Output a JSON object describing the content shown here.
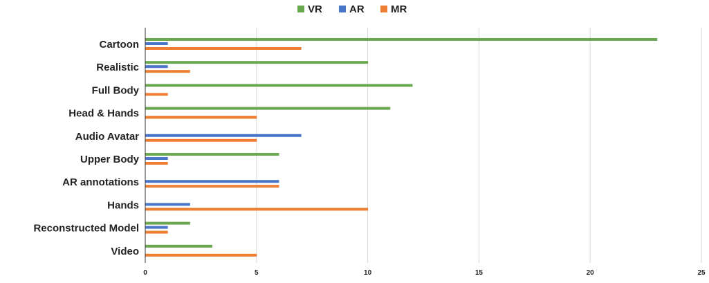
{
  "chart_data": {
    "type": "bar",
    "orientation": "horizontal",
    "title": "",
    "xlabel": "",
    "ylabel": "",
    "xlim": [
      0,
      25
    ],
    "x_ticks": [
      "0",
      "5",
      "10",
      "15",
      "20",
      "25"
    ],
    "grid": "vertical",
    "legend_position": "top",
    "categories": [
      "Cartoon",
      "Realistic",
      "Full Body",
      "Head & Hands",
      "Audio Avatar",
      "Upper Body",
      "AR annotations",
      "Hands",
      "Reconstructed Model",
      "Video"
    ],
    "series": [
      {
        "name": "VR",
        "color": "#6aa84f",
        "values": [
          23,
          10,
          12,
          11,
          0,
          6,
          0,
          0,
          2,
          3
        ]
      },
      {
        "name": "AR",
        "color": "#4a76c9",
        "values": [
          1,
          1,
          0,
          0,
          7,
          1,
          6,
          2,
          1,
          0
        ]
      },
      {
        "name": "MR",
        "color": "#ed7d31",
        "values": [
          7,
          2,
          1,
          5,
          5,
          1,
          6,
          10,
          1,
          5
        ]
      }
    ]
  }
}
